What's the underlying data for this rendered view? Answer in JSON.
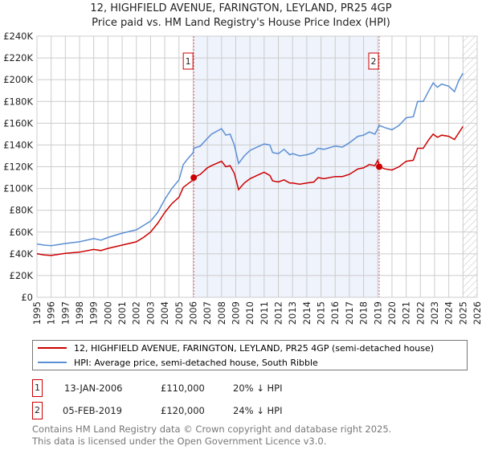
{
  "title": "12, HIGHFIELD AVENUE, FARINGTON, LEYLAND, PR25 4GP",
  "subtitle": "Price paid vs. HM Land Registry's House Price Index (HPI)",
  "chart_data": {
    "type": "line",
    "title": "12, HIGHFIELD AVENUE, FARINGTON, LEYLAND, PR25 4GP - Price paid vs. HM Land Registry's House Price Index (HPI)",
    "xlim": [
      1995,
      2026
    ],
    "ylim": [
      0,
      240000
    ],
    "x_ticks": [
      "1995",
      "1996",
      "1997",
      "1998",
      "1999",
      "2000",
      "2001",
      "2002",
      "2003",
      "2004",
      "2005",
      "2006",
      "2007",
      "2008",
      "2009",
      "2010",
      "2011",
      "2012",
      "2013",
      "2014",
      "2015",
      "2016",
      "2017",
      "2018",
      "2019",
      "2020",
      "2021",
      "2022",
      "2023",
      "2024",
      "2025",
      "2026"
    ],
    "y_ticks": [
      "£0",
      "£20K",
      "£40K",
      "£60K",
      "£80K",
      "£100K",
      "£120K",
      "£140K",
      "£160K",
      "£180K",
      "£200K",
      "£220K",
      "£240K"
    ],
    "grid": true,
    "shaded_range": [
      2006.04,
      2019.1
    ],
    "hatched_from": 2025.0,
    "series": [
      {
        "name": "HPI: Average price, semi-detached house, South Ribble",
        "color": "#5b8fd4",
        "x": [
          1995,
          1995.5,
          1996,
          1997,
          1998,
          1999,
          1999.5,
          2000,
          2001,
          2002,
          2002.5,
          2003,
          2003.5,
          2004,
          2004.5,
          2005,
          2005.3,
          2005.6,
          2006,
          2006.04,
          2006.5,
          2007,
          2007.3,
          2008,
          2008.3,
          2008.6,
          2008.9,
          2009.2,
          2009.6,
          2010,
          2010.5,
          2011,
          2011.4,
          2011.6,
          2012,
          2012.4,
          2012.8,
          2013,
          2013.5,
          2014,
          2014.5,
          2014.8,
          2015.2,
          2016,
          2016.5,
          2017,
          2017.6,
          2018,
          2018.4,
          2018.8,
          2019,
          2019.1,
          2019.5,
          2020,
          2020.5,
          2021,
          2021.5,
          2021.8,
          2022.2,
          2022.6,
          2022.9,
          2023.2,
          2023.5,
          2024,
          2024.4,
          2024.7,
          2025.0
        ],
        "y": [
          49000,
          48000,
          47500,
          49500,
          51000,
          54000,
          52500,
          55000,
          59000,
          62000,
          66000,
          70000,
          78000,
          90000,
          100000,
          108000,
          122000,
          127000,
          133000,
          137000,
          139000,
          146000,
          150000,
          155000,
          149000,
          150000,
          140000,
          123000,
          130000,
          135000,
          138000,
          141000,
          140000,
          133000,
          132000,
          136000,
          131000,
          132000,
          130000,
          131000,
          133000,
          137000,
          136000,
          139000,
          138000,
          142000,
          148000,
          149000,
          152000,
          150000,
          155000,
          158000,
          156000,
          154000,
          158000,
          165000,
          166000,
          180000,
          180000,
          190000,
          197000,
          193000,
          196000,
          194000,
          189000,
          199000,
          206000
        ]
      },
      {
        "name": "12, HIGHFIELD AVENUE, FARINGTON, LEYLAND, PR25 4GP (semi-detached house)",
        "color": "#cc0000",
        "x": [
          1995,
          1995.5,
          1996,
          1997,
          1998,
          1999,
          1999.5,
          2000,
          2001,
          2002,
          2002.5,
          2003,
          2003.5,
          2004,
          2004.5,
          2005,
          2005.3,
          2005.6,
          2006,
          2006.04,
          2006.5,
          2007,
          2007.3,
          2008,
          2008.3,
          2008.6,
          2008.9,
          2009.2,
          2009.6,
          2010,
          2010.5,
          2011,
          2011.4,
          2011.6,
          2012,
          2012.4,
          2012.8,
          2013,
          2013.5,
          2014,
          2014.5,
          2014.8,
          2015.2,
          2016,
          2016.5,
          2017,
          2017.6,
          2018,
          2018.4,
          2018.8,
          2019,
          2019.1,
          2019.5,
          2020,
          2020.5,
          2021,
          2021.5,
          2021.8,
          2022.2,
          2022.6,
          2022.9,
          2023.2,
          2023.5,
          2024,
          2024.4,
          2024.7,
          2025.0
        ],
        "y": [
          40000,
          39000,
          38500,
          40500,
          41500,
          44000,
          43000,
          45000,
          48000,
          51000,
          55000,
          60000,
          68000,
          78000,
          86000,
          92000,
          101000,
          104000,
          108000,
          110000,
          113000,
          119000,
          121000,
          125000,
          120000,
          121000,
          114000,
          99000,
          105000,
          109000,
          112000,
          115000,
          112000,
          107000,
          106000,
          108000,
          105000,
          105000,
          104000,
          105000,
          106000,
          110000,
          109000,
          111000,
          111000,
          113000,
          118000,
          119000,
          122000,
          121000,
          126000,
          120000,
          118000,
          117000,
          120000,
          125000,
          126000,
          137000,
          137000,
          145000,
          150000,
          147000,
          149000,
          148000,
          145000,
          151000,
          157000
        ]
      }
    ],
    "sales": [
      {
        "label": "1",
        "x": 2006.04,
        "price": 110000
      },
      {
        "label": "2",
        "x": 2019.1,
        "price": 120000
      }
    ]
  },
  "legend": {
    "property": "12, HIGHFIELD AVENUE, FARINGTON, LEYLAND, PR25 4GP (semi-detached house)",
    "hpi": "HPI: Average price, semi-detached house, South Ribble"
  },
  "transactions": [
    {
      "num": "1",
      "date": "13-JAN-2006",
      "price": "£110,000",
      "delta": "20% ↓ HPI"
    },
    {
      "num": "2",
      "date": "05-FEB-2019",
      "price": "£120,000",
      "delta": "24% ↓ HPI"
    }
  ],
  "footer": {
    "line1": "Contains HM Land Registry data © Crown copyright and database right 2025.",
    "line2": "This data is licensed under the Open Government Licence v3.0."
  }
}
